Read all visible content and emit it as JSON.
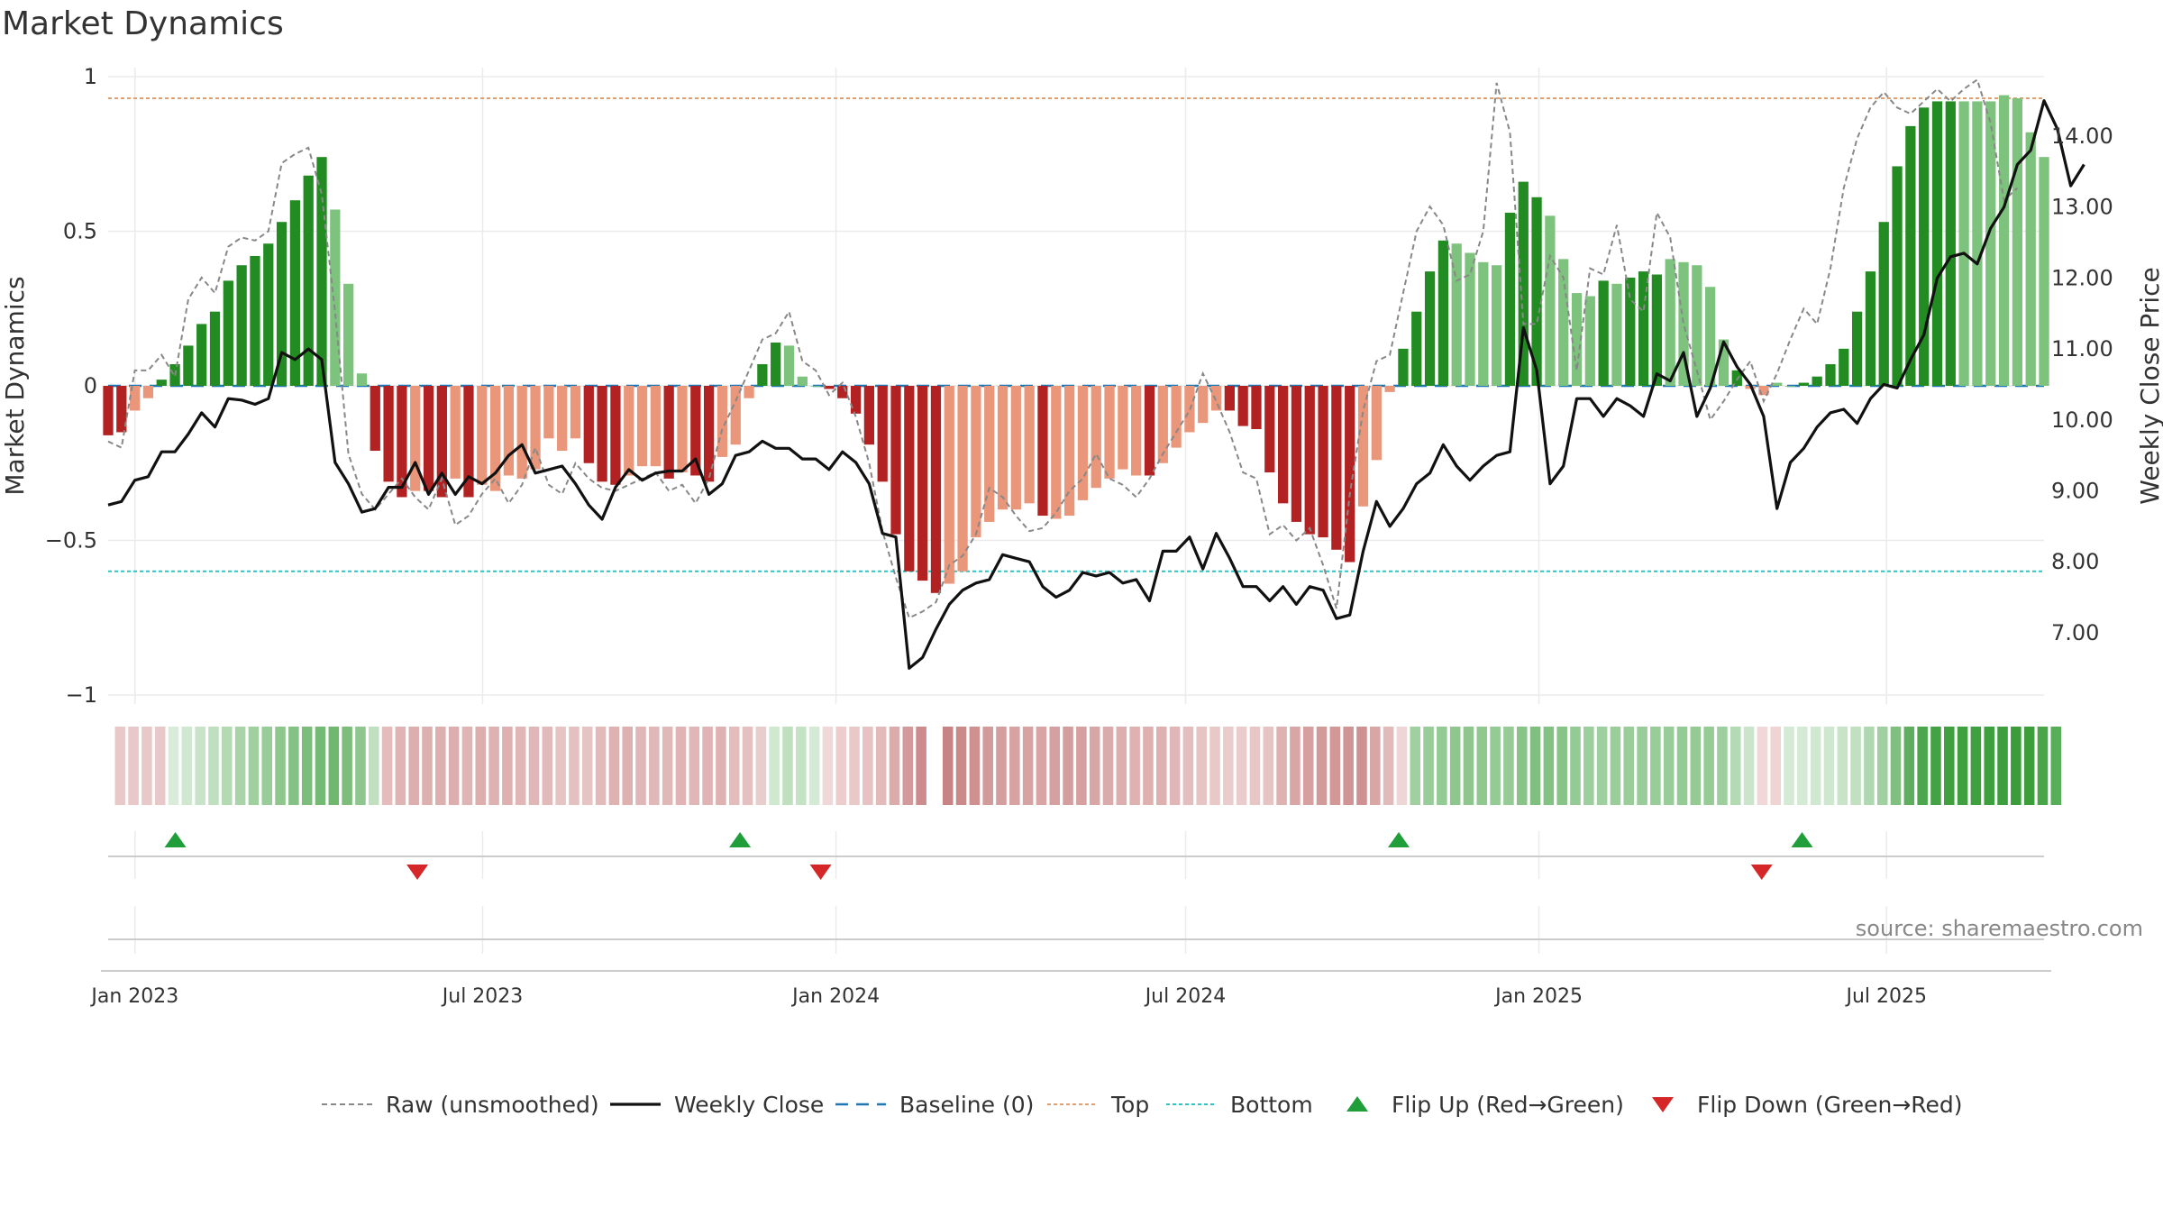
{
  "chart_data": {
    "type": "bar",
    "title": "Market Dynamics",
    "ylabel_left": "Market Dynamics",
    "ylabel_right": "Weekly Close Price",
    "y_left_ticks": [
      "1",
      "0.5",
      "0",
      "−0.5",
      "−1"
    ],
    "y_left_range": [
      -1,
      1
    ],
    "y_right_ticks": [
      "14.00",
      "13.00",
      "12.00",
      "11.00",
      "10.00",
      "9.00",
      "8.00",
      "7.00"
    ],
    "x_ticks": [
      "Jan 2023",
      "Jul 2023",
      "Jan 2024",
      "Jul 2024",
      "Jan 2025",
      "Jul 2025"
    ],
    "x_start": "2022-12-18",
    "x_end": "2025-09-21",
    "top_level": 0.93,
    "bottom_level": -0.6,
    "baseline": 0,
    "source": "source: sharemaestro.com",
    "colors": {
      "strong_green": "#228b22",
      "light_green": "#7dc27d",
      "strong_red": "#b22222",
      "light_red": "#e9967a",
      "raw": "#888888",
      "close": "#111111",
      "baseline": "#1f77b4",
      "top": "#e0a070",
      "bottom": "#2fc4c4",
      "flip_up": "#1f9e3a",
      "flip_down": "#d62728"
    },
    "market_dynamics": [
      -0.16,
      -0.15,
      -0.08,
      -0.04,
      0.02,
      0.07,
      0.13,
      0.2,
      0.24,
      0.34,
      0.39,
      0.42,
      0.46,
      0.53,
      0.6,
      0.68,
      0.74,
      0.57,
      0.33,
      0.04,
      -0.21,
      -0.31,
      -0.36,
      -0.34,
      -0.34,
      -0.36,
      -0.3,
      -0.36,
      -0.32,
      -0.34,
      -0.29,
      -0.3,
      -0.27,
      -0.17,
      -0.21,
      -0.17,
      -0.25,
      -0.31,
      -0.32,
      -0.29,
      -0.26,
      -0.26,
      -0.3,
      -0.28,
      -0.29,
      -0.31,
      -0.23,
      -0.19,
      -0.04,
      0.07,
      0.14,
      0.13,
      0.03,
      0,
      -0.01,
      -0.04,
      -0.09,
      -0.19,
      -0.31,
      -0.48,
      -0.6,
      -0.63,
      -0.67,
      -0.64,
      -0.6,
      -0.49,
      -0.44,
      -0.4,
      -0.4,
      -0.38,
      -0.42,
      -0.43,
      -0.42,
      -0.37,
      -0.33,
      -0.3,
      -0.27,
      -0.29,
      -0.29,
      -0.25,
      -0.2,
      -0.15,
      -0.12,
      -0.08,
      -0.08,
      -0.13,
      -0.14,
      -0.28,
      -0.38,
      -0.44,
      -0.48,
      -0.49,
      -0.53,
      -0.57,
      -0.39,
      -0.24,
      -0.02,
      0.12,
      0.24,
      0.37,
      0.47,
      0.46,
      0.43,
      0.4,
      0.39,
      0.56,
      0.66,
      0.61,
      0.55,
      0.41,
      0.3,
      0.29,
      0.34,
      0.33,
      0.35,
      0.37,
      0.36,
      0.41,
      0.4,
      0.39,
      0.32,
      0.15,
      0.05,
      -0.01,
      -0.03,
      0.01,
      0,
      0.01,
      0.03,
      0.07,
      0.12,
      0.24,
      0.37,
      0.53,
      0.71,
      0.84,
      0.9,
      0.92,
      0.92,
      0.92,
      0.92,
      0.92,
      0.94,
      0.93,
      0.82,
      0.74
    ],
    "bar_strength": [
      "strong",
      "strong",
      "light",
      "light",
      "strong",
      "strong",
      "strong",
      "strong",
      "strong",
      "strong",
      "strong",
      "strong",
      "strong",
      "strong",
      "strong",
      "strong",
      "strong",
      "light",
      "light",
      "light",
      "strong",
      "strong",
      "strong",
      "light",
      "strong",
      "strong",
      "light",
      "strong",
      "light",
      "light",
      "light",
      "light",
      "light",
      "light",
      "light",
      "light",
      "strong",
      "strong",
      "strong",
      "light",
      "light",
      "light",
      "strong",
      "light",
      "strong",
      "strong",
      "light",
      "light",
      "light",
      "strong",
      "strong",
      "light",
      "light",
      "light",
      "strong",
      "strong",
      "strong",
      "strong",
      "strong",
      "strong",
      "strong",
      "strong",
      "strong",
      "light",
      "light",
      "light",
      "light",
      "light",
      "light",
      "light",
      "strong",
      "light",
      "light",
      "light",
      "light",
      "light",
      "light",
      "light",
      "strong",
      "light",
      "light",
      "light",
      "light",
      "light",
      "strong",
      "strong",
      "strong",
      "strong",
      "strong",
      "strong",
      "strong",
      "strong",
      "strong",
      "strong",
      "light",
      "light",
      "light",
      "strong",
      "strong",
      "strong",
      "strong",
      "light",
      "light",
      "light",
      "light",
      "strong",
      "strong",
      "strong",
      "light",
      "light",
      "light",
      "light",
      "strong",
      "light",
      "strong",
      "strong",
      "strong",
      "light",
      "light",
      "light",
      "light",
      "light",
      "strong",
      "light",
      "light",
      "light",
      "light",
      "strong",
      "strong",
      "strong",
      "strong",
      "strong",
      "strong",
      "strong",
      "strong",
      "strong",
      "strong",
      "strong",
      "strong",
      "light",
      "light",
      "light"
    ],
    "raw_unsmoothed": [
      -0.18,
      -0.2,
      0.05,
      0.05,
      0.1,
      0.03,
      0.28,
      0.35,
      0.3,
      0.45,
      0.48,
      0.47,
      0.5,
      0.72,
      0.75,
      0.77,
      0.62,
      0.24,
      -0.22,
      -0.35,
      -0.4,
      -0.35,
      -0.3,
      -0.36,
      -0.4,
      -0.3,
      -0.45,
      -0.42,
      -0.35,
      -0.3,
      -0.38,
      -0.32,
      -0.2,
      -0.32,
      -0.35,
      -0.25,
      -0.3,
      -0.33,
      -0.34,
      -0.32,
      -0.3,
      -0.28,
      -0.34,
      -0.32,
      -0.38,
      -0.3,
      -0.14,
      -0.05,
      0.05,
      0.15,
      0.17,
      0.24,
      0.08,
      0.05,
      -0.03,
      0.01,
      -0.1,
      -0.25,
      -0.47,
      -0.62,
      -0.75,
      -0.73,
      -0.7,
      -0.58,
      -0.55,
      -0.48,
      -0.33,
      -0.36,
      -0.42,
      -0.47,
      -0.46,
      -0.41,
      -0.34,
      -0.3,
      -0.22,
      -0.3,
      -0.32,
      -0.36,
      -0.3,
      -0.22,
      -0.15,
      -0.08,
      0.04,
      -0.05,
      -0.15,
      -0.28,
      -0.3,
      -0.48,
      -0.45,
      -0.5,
      -0.46,
      -0.58,
      -0.72,
      -0.35,
      -0.08,
      0.08,
      0.1,
      0.3,
      0.5,
      0.58,
      0.52,
      0.34,
      0.36,
      0.5,
      0.98,
      0.82,
      0.2,
      0.2,
      0.42,
      0.35,
      0.05,
      0.38,
      0.36,
      0.52,
      0.28,
      0.24,
      0.56,
      0.48,
      0.2,
      0.05,
      -0.11,
      -0.05,
      0.02,
      0.08,
      -0.05,
      0.04,
      0.15,
      0.25,
      0.2,
      0.38,
      0.64,
      0.8,
      0.9,
      0.95,
      0.9,
      0.88,
      0.92,
      0.96,
      0.92,
      0.96,
      0.99,
      0.85,
      0.6,
      0.64
    ],
    "weekly_close": [
      8.8,
      8.85,
      9.15,
      9.2,
      9.55,
      9.55,
      9.8,
      10.1,
      9.9,
      10.3,
      10.28,
      10.22,
      10.3,
      10.95,
      10.85,
      11.0,
      10.85,
      9.4,
      9.1,
      8.7,
      8.75,
      9.05,
      9.05,
      9.4,
      8.95,
      9.25,
      8.95,
      9.2,
      9.1,
      9.25,
      9.5,
      9.65,
      9.25,
      9.3,
      9.35,
      9.1,
      8.8,
      8.6,
      9.05,
      9.3,
      9.15,
      9.25,
      9.28,
      9.28,
      9.45,
      8.95,
      9.1,
      9.5,
      9.55,
      9.7,
      9.6,
      9.6,
      9.45,
      9.45,
      9.3,
      9.55,
      9.4,
      9.1,
      8.4,
      8.35,
      6.5,
      6.65,
      7.05,
      7.4,
      7.6,
      7.7,
      7.75,
      8.1,
      8.05,
      8.0,
      7.65,
      7.5,
      7.6,
      7.85,
      7.8,
      7.85,
      7.7,
      7.75,
      7.45,
      8.15,
      8.15,
      8.35,
      7.9,
      8.4,
      8.05,
      7.65,
      7.65,
      7.45,
      7.65,
      7.4,
      7.65,
      7.6,
      7.2,
      7.25,
      8.15,
      8.85,
      8.5,
      8.75,
      9.1,
      9.25,
      9.65,
      9.35,
      9.15,
      9.35,
      9.5,
      9.55,
      11.3,
      10.7,
      9.1,
      9.35,
      10.3,
      10.3,
      10.05,
      10.3,
      10.2,
      10.05,
      10.65,
      10.55,
      10.95,
      10.05,
      10.45,
      11.1,
      10.75,
      10.5,
      10.05,
      8.75,
      9.4,
      9.6,
      9.9,
      10.1,
      10.15,
      9.95,
      10.3,
      10.5,
      10.45,
      10.85,
      11.2,
      12.0,
      12.3,
      12.35,
      12.2,
      12.7,
      13.0,
      13.6,
      13.8,
      14.5,
      14.1,
      13.3,
      13.6
    ],
    "strip_start": "2022-12-25",
    "strip_colors": [
      "#e8c8c8",
      "#e8c8c8",
      "#e8c8c8",
      "#e8c8c8",
      "#d9ecd9",
      "#d0e8d0",
      "#c8e4c8",
      "#bfe0bf",
      "#b4dab4",
      "#a8d4a8",
      "#a0d0a0",
      "#98cc98",
      "#8ec68e",
      "#84c184",
      "#7cbd7c",
      "#74b974",
      "#70b770",
      "#7cbd7c",
      "#8ec68e",
      "#c0e0c0",
      "#e4bcbc",
      "#e0b4b4",
      "#ddaeae",
      "#ddb0b0",
      "#ddb0b0",
      "#ddaeae",
      "#dfb4b4",
      "#ddaeae",
      "#dfb2b2",
      "#deb0b0",
      "#e0b6b6",
      "#e0b6b6",
      "#e2baba",
      "#e6c4c4",
      "#e4c0c0",
      "#e6c4c4",
      "#e2baba",
      "#dfb2b2",
      "#deb0b0",
      "#e0b6b6",
      "#e1b8b8",
      "#e1b8b8",
      "#e0b4b4",
      "#e0b6b6",
      "#e0b4b4",
      "#dfb2b2",
      "#e4bcbc",
      "#e5c0c0",
      "#e9cccc",
      "#d0e8d0",
      "#bfe0bf",
      "#c4e2c4",
      "#d4ead4",
      "#f0d8d8",
      "#eccccc",
      "#e9c8c8",
      "#e6c2c2",
      "#e2baba",
      "#dcabab",
      "#d29a9a",
      "#cc8c8c",
      "#ffffff",
      "#c88484",
      "#cb8a8a",
      "#cf9090",
      "#d39a9a",
      "#d59e9e",
      "#d7a2a2",
      "#d7a2a2",
      "#d8a4a4",
      "#d6a0a0",
      "#d59e9e",
      "#d6a0a0",
      "#d9a6a6",
      "#dbaaaa",
      "#ddaeae",
      "#dfb2b2",
      "#deb0b0",
      "#deb0b0",
      "#e1b6b6",
      "#e4bebe",
      "#e7c4c4",
      "#e9c8c8",
      "#ebcccc",
      "#ebcccc",
      "#e8c6c6",
      "#e7c4c4",
      "#dfb2b2",
      "#d9a6a6",
      "#d6a0a0",
      "#d39a9a",
      "#d29898",
      "#d09494",
      "#ce9090",
      "#d9a6a6",
      "#e2baba",
      "#eed6d6",
      "#a0d0a0",
      "#98cc98",
      "#94ca94",
      "#8ec68e",
      "#8ec68e",
      "#90c890",
      "#94ca94",
      "#96cb96",
      "#88c388",
      "#80bf80",
      "#84c184",
      "#88c388",
      "#94ca94",
      "#9dce9d",
      "#9ecf9e",
      "#9acd9a",
      "#9bcd9b",
      "#99cc99",
      "#98cc98",
      "#98cc98",
      "#94ca94",
      "#95ca95",
      "#96cb96",
      "#9dce9d",
      "#b4dab4",
      "#cbe5cb",
      "#f0d8d8",
      "#f0d4d4",
      "#d4ead4",
      "#d4ead4",
      "#d0e8d0",
      "#cfe7cf",
      "#c8e4c8",
      "#c0e0c0",
      "#b0d8b0",
      "#a0d0a0",
      "#80bf80",
      "#5fae5f",
      "#4ca74c",
      "#43a243",
      "#40a040",
      "#40a040",
      "#3fa03f",
      "#3d9f3d",
      "#3c9e3c",
      "#3a9d3a",
      "#3b9e3b",
      "#48a548",
      "#58ad58"
    ],
    "flip_up_dates": [
      "2023-01-22",
      "2023-11-12",
      "2024-10-20",
      "2025-05-18"
    ],
    "flip_down_dates": [
      "2023-05-28",
      "2023-12-24",
      "2025-04-27"
    ],
    "legend": [
      "Raw (unsmoothed)",
      "Weekly Close",
      "Baseline (0)",
      "Top",
      "Bottom",
      "Flip Up (Red→Green)",
      "Flip Down (Green→Red)"
    ]
  }
}
